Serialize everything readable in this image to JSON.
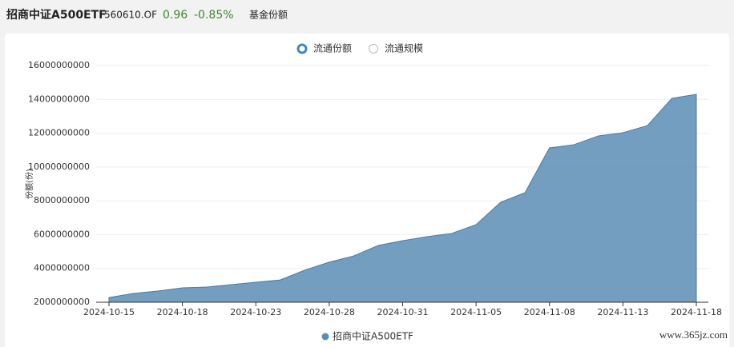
{
  "header": {
    "title": "招商中证A500ETF",
    "code": "560610.OF",
    "price": "0.96",
    "change": "-0.85%",
    "tab": "基金份额"
  },
  "toggles": [
    "流通份额",
    "流通规模"
  ],
  "watermark": "www.365jz.com",
  "chart_data": {
    "type": "area",
    "ylabel": "份额(份)",
    "categories": [
      "2024-10-15",
      null,
      null,
      "2024-10-18",
      null,
      null,
      "2024-10-23",
      null,
      null,
      "2024-10-28",
      null,
      null,
      "2024-10-31",
      null,
      null,
      "2024-11-05",
      null,
      null,
      "2024-11-08",
      null,
      null,
      "2024-11-13",
      null,
      null,
      "2024-11-18"
    ],
    "series": [
      {
        "name": "招商中证A500ETF",
        "color": "#5b8db5",
        "values": [
          2280000000,
          2520000000,
          2660000000,
          2850000000,
          2900000000,
          3040000000,
          3180000000,
          3320000000,
          3900000000,
          4370000000,
          4740000000,
          5360000000,
          5640000000,
          5880000000,
          6070000000,
          6590000000,
          7910000000,
          8480000000,
          11130000000,
          11320000000,
          11840000000,
          12030000000,
          12450000000,
          14060000000,
          14300000000
        ]
      }
    ],
    "ylim": [
      2000000000,
      16000000000
    ],
    "yticks": [
      2000000000,
      4000000000,
      6000000000,
      8000000000,
      10000000000,
      12000000000,
      14000000000,
      16000000000
    ],
    "grid": true
  }
}
